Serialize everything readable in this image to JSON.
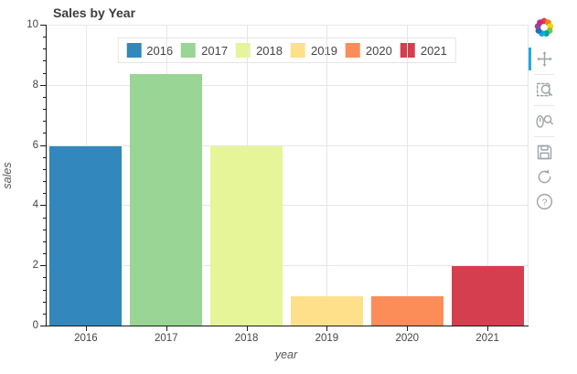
{
  "title": "Sales by Year",
  "chart_data": {
    "type": "bar",
    "title": "Sales by Year",
    "xlabel": "year",
    "ylabel": "sales",
    "categories": [
      "2016",
      "2017",
      "2018",
      "2019",
      "2020",
      "2021"
    ],
    "values": [
      6,
      8.4,
      6,
      1,
      1,
      2
    ],
    "colors": [
      "#3288bd",
      "#99d594",
      "#e6f598",
      "#fee08b",
      "#fc8d59",
      "#d53e4f"
    ],
    "ylim": [
      0,
      10
    ],
    "yticks": [
      0,
      2,
      4,
      6,
      8,
      10
    ],
    "minor_tick_step": 0.4,
    "bar_width_fraction": 0.9,
    "grid": true,
    "legend": {
      "position": "top-center",
      "orientation": "horizontal",
      "entries": [
        {
          "label": "2016",
          "color": "#3288bd"
        },
        {
          "label": "2017",
          "color": "#99d594"
        },
        {
          "label": "2018",
          "color": "#e6f598"
        },
        {
          "label": "2019",
          "color": "#fee08b"
        },
        {
          "label": "2020",
          "color": "#fc8d59"
        },
        {
          "label": "2021",
          "color": "#d53e4f"
        }
      ]
    }
  },
  "toolbar": {
    "active_tool": "pan",
    "accent_color": "#26aae1",
    "icon_color": "#9da2a6",
    "tools": [
      {
        "name": "bokeh-logo",
        "icon": "bokeh-logo-icon"
      },
      {
        "name": "pan",
        "icon": "pan-icon",
        "active": true
      },
      {
        "name": "box-zoom",
        "icon": "box-zoom-icon",
        "active": false
      },
      {
        "name": "wheel-zoom",
        "icon": "wheel-zoom-icon",
        "active": false
      },
      {
        "name": "save",
        "icon": "save-icon",
        "active": false
      },
      {
        "name": "reset",
        "icon": "reset-icon",
        "active": false
      },
      {
        "name": "help",
        "icon": "help-icon",
        "active": false,
        "glyph": "?"
      }
    ]
  },
  "palette": {
    "grid_color": "#e6e6e6",
    "axis_line_color": "#1a1a1a",
    "tick_label_color": "#444444",
    "axis_title_color": "#555555",
    "title_color": "#3c3c3c",
    "legend_border_color": "#e5e5e5",
    "logo_colors": [
      "#e93d3d",
      "#f0851c",
      "#edd812",
      "#7dc242",
      "#00a98f",
      "#00aeef",
      "#2a6cb5",
      "#8b49a5",
      "#c32889"
    ]
  }
}
